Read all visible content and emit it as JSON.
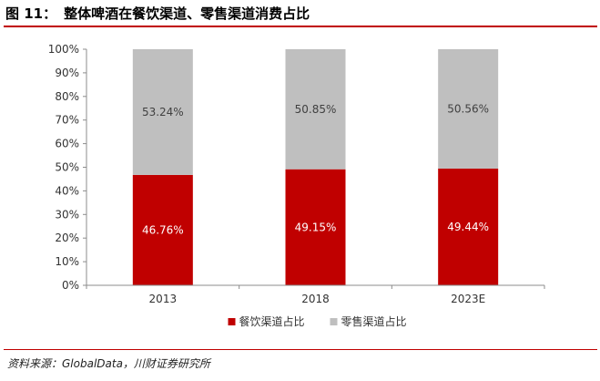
{
  "figure": {
    "number": "图 11：",
    "title": "整体啤酒在餐饮渠道、零售渠道消费占比",
    "source": "资料来源：GlobalData，川财证券研究所"
  },
  "colors": {
    "accent": "#C00000",
    "series_restaurant": "#C00000",
    "series_retail": "#BFBFBF"
  },
  "chart_data": {
    "type": "bar",
    "stacked": true,
    "categories": [
      "2013",
      "2018",
      "2023E"
    ],
    "series": [
      {
        "name": "餐饮渠道占比",
        "values": [
          46.76,
          49.15,
          49.44
        ],
        "labels": [
          "46.76%",
          "49.15%",
          "49.44%"
        ],
        "color": "#C00000",
        "label_color": "#FFFFFF"
      },
      {
        "name": "零售渠道占比",
        "values": [
          53.24,
          50.85,
          50.56
        ],
        "labels": [
          "53.24%",
          "50.85%",
          "50.56%"
        ],
        "color": "#BFBFBF",
        "label_color": "#404040"
      }
    ],
    "ylim": [
      0,
      100
    ],
    "yticks": [
      0,
      10,
      20,
      30,
      40,
      50,
      60,
      70,
      80,
      90,
      100
    ],
    "ytick_labels": [
      "0%",
      "10%",
      "20%",
      "30%",
      "40%",
      "50%",
      "60%",
      "70%",
      "80%",
      "90%",
      "100%"
    ],
    "grid": false,
    "legend_position": "bottom-center"
  }
}
